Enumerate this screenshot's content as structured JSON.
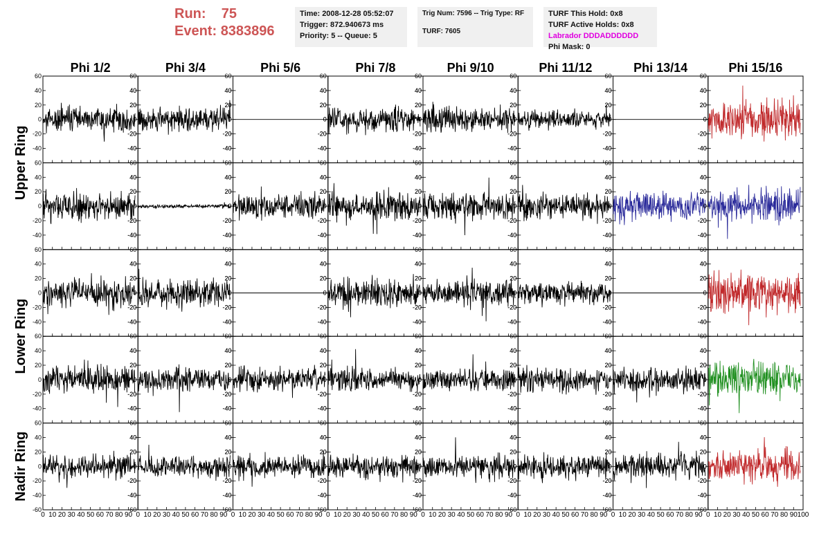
{
  "header": {
    "run_label": "Run:",
    "run_value": "75",
    "event_label": "Event:",
    "event_value": "8383896"
  },
  "info_trigger": {
    "time": "Time: 2008-12-28 05:52:07",
    "trigger": "Trigger: 872.940673 ms",
    "priority": "Priority: 5 -- Queue: 5"
  },
  "info_trig": {
    "trig": "Trig Num: 7596 -- Trig Type: RF",
    "turf": "TURF: 7605"
  },
  "info_turf": {
    "this_hold": "TURF This Hold: 0x8",
    "active_holds": "TURF Active Holds: 0x8",
    "labrador": "Labrador DDDADDDDDD",
    "phi_mask": "Phi Mask: 0"
  },
  "colors": {
    "black": "#000000",
    "red": "#c0282a",
    "blue": "#2a2a9a",
    "green": "#1f8f1f",
    "title_red": "#cd5555",
    "magenta": "#e000e0"
  },
  "chart_data": {
    "type": "line",
    "columns": [
      "Phi 1/2",
      "Phi 3/4",
      "Phi 5/6",
      "Phi 7/8",
      "Phi 9/10",
      "Phi 11/12",
      "Phi 13/14",
      "Phi 15/16"
    ],
    "row_labels": [
      "Upper Ring",
      "Lower Ring",
      "Nadir Ring"
    ],
    "xlim": [
      0,
      100
    ],
    "ylim": [
      -60,
      60
    ],
    "x_ticks": [
      0,
      10,
      20,
      30,
      40,
      50,
      60,
      70,
      80,
      90,
      100
    ],
    "y_ticks": [
      -60,
      -40,
      -20,
      0,
      20,
      40,
      60
    ],
    "panels": [
      [
        "black:14:1",
        "black:12:2",
        "flat:0:3",
        "black:13:4",
        "black:14:5",
        "black:10:6",
        "flat:0:7",
        "red:20:8"
      ],
      [
        "black:16:11",
        "black:2:12",
        "black:14:13",
        "black:14:14",
        "black:14:15",
        "black:14:16",
        "blue:16:17",
        "blue:17:18"
      ],
      [
        "black:14:21",
        "black:15:22",
        "flat:0:23",
        "black:14:24",
        "black:14:25",
        "black:11:26",
        "flat:0:27",
        "red:22:28"
      ],
      [
        "black:15:31",
        "black:13:32",
        "black:13:33",
        "black:13:34",
        "black:12:35",
        "black:13:36",
        "black:13:37",
        "green:20:38"
      ],
      [
        "black:13:41",
        "black:12:42",
        "black:12:43",
        "black:12:44",
        "black:12:45",
        "black:13:46",
        "black:14:47",
        "red:17:48"
      ]
    ]
  }
}
